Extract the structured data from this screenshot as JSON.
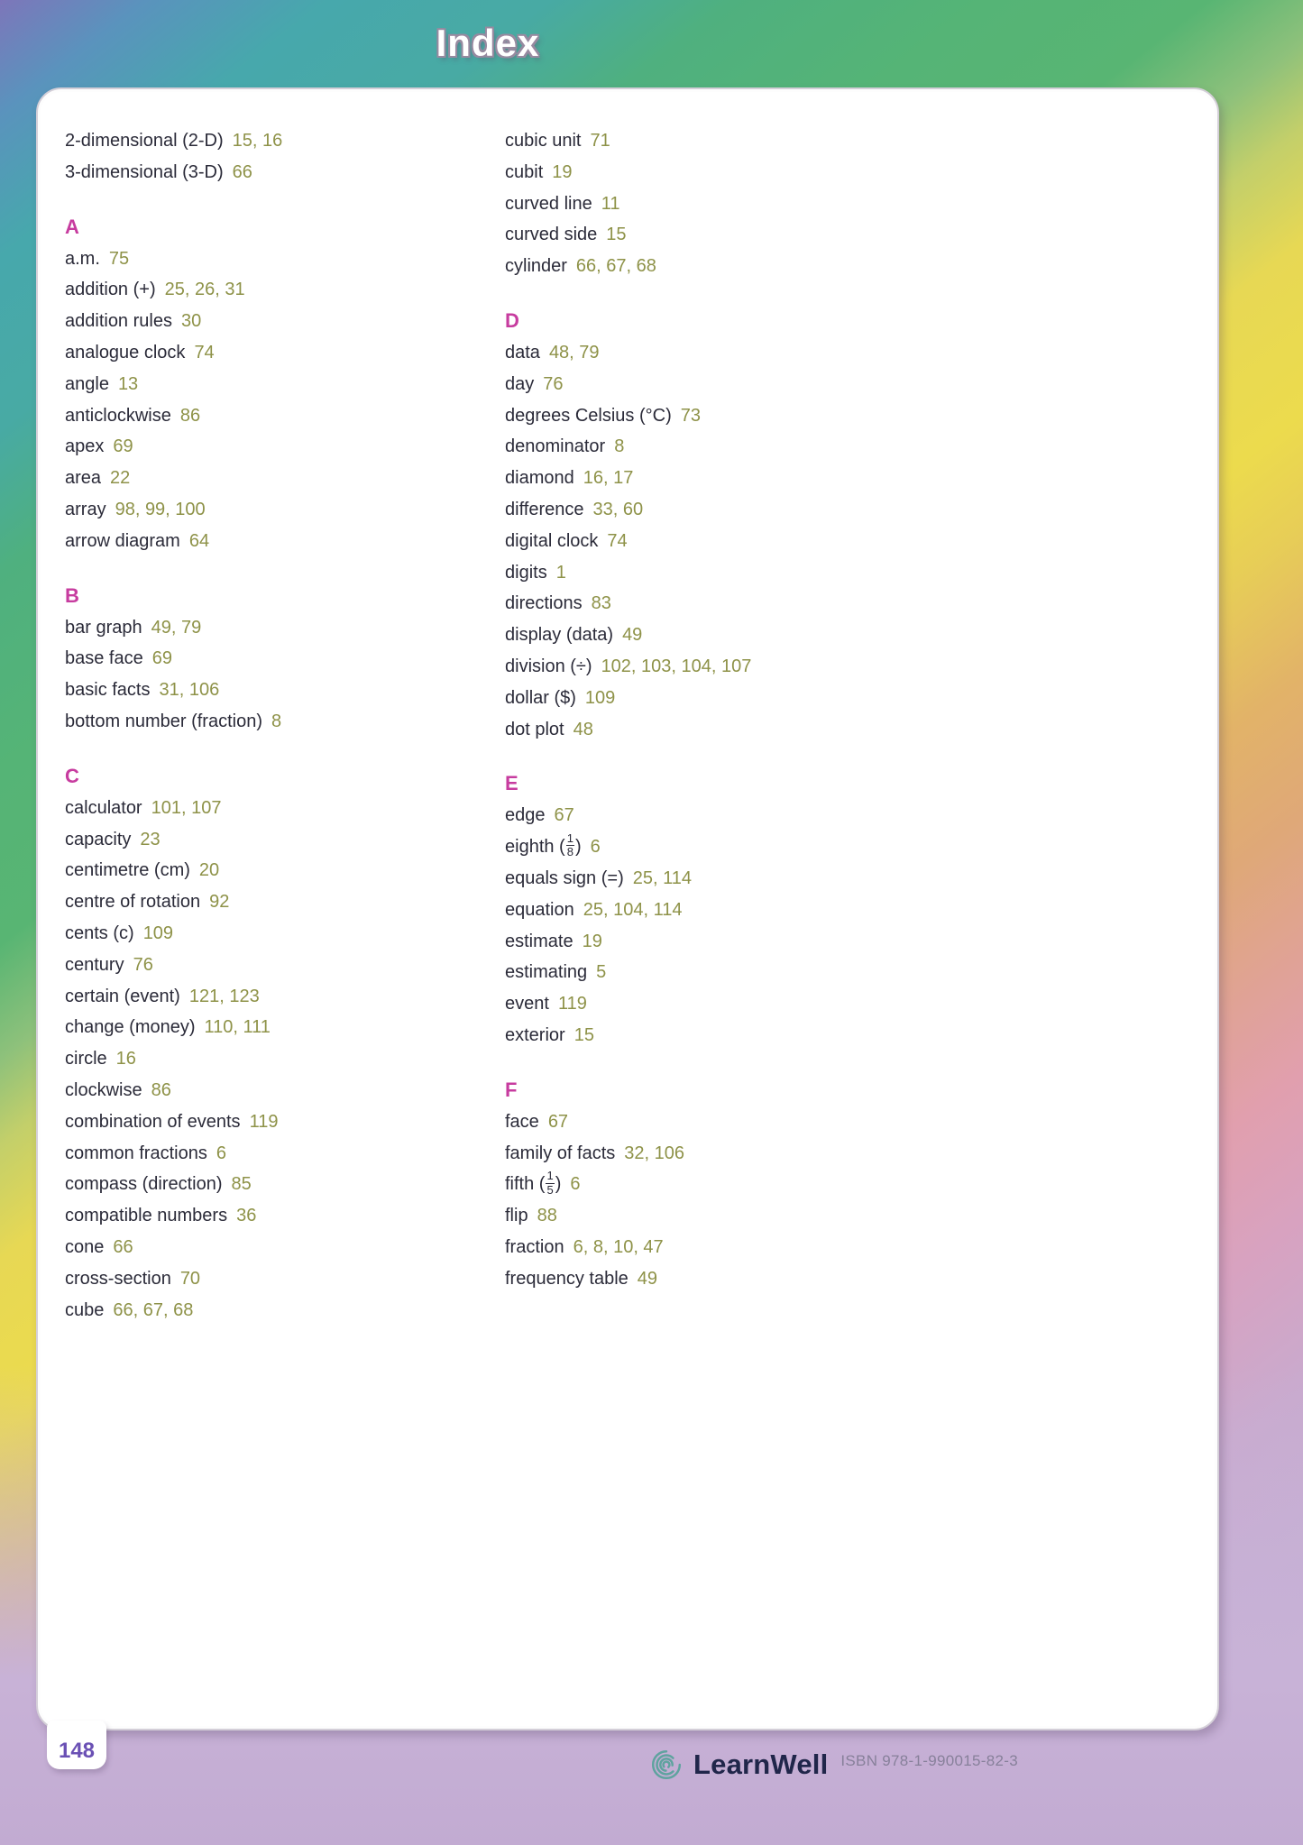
{
  "title": "Index",
  "page_badge": "148",
  "footer": {
    "brand": "LearnWell",
    "isbn": "ISBN 978-1-990015-82-3"
  },
  "colors": {
    "section_letter_pink": "#c73c9f",
    "page_number_olive": "#8e9248",
    "term_dark": "#2b2b39",
    "badge_purple": "#6a50b4",
    "logo_navy": "#20264a",
    "logo_teal": "#5fa39f"
  },
  "columns": [
    {
      "groups": [
        {
          "letter": "",
          "entries": [
            {
              "term": "2-dimensional (2-D)",
              "pages": "15, 16"
            },
            {
              "term": "3-dimensional (3-D)",
              "pages": "66"
            }
          ]
        },
        {
          "letter": "A",
          "entries": [
            {
              "term": "a.m.",
              "pages": "75"
            },
            {
              "term": "addition (+)",
              "pages": "25, 26, 31"
            },
            {
              "term": "addition rules",
              "pages": "30"
            },
            {
              "term": "analogue clock",
              "pages": "74"
            },
            {
              "term": "angle",
              "pages": "13"
            },
            {
              "term": "anticlockwise",
              "pages": "86"
            },
            {
              "term": "apex",
              "pages": "69"
            },
            {
              "term": "area",
              "pages": "22"
            },
            {
              "term": "array",
              "pages": "98, 99, 100"
            },
            {
              "term": "arrow diagram",
              "pages": "64"
            }
          ]
        },
        {
          "letter": "B",
          "entries": [
            {
              "term": "bar graph",
              "pages": "49, 79"
            },
            {
              "term": "base face",
              "pages": "69"
            },
            {
              "term": "basic facts",
              "pages": "31, 106"
            },
            {
              "term": "bottom number (fraction)",
              "pages": "8"
            }
          ]
        },
        {
          "letter": "C",
          "entries": [
            {
              "term": "calculator",
              "pages": "101, 107"
            },
            {
              "term": "capacity",
              "pages": "23"
            },
            {
              "term": "centimetre (cm)",
              "pages": "20"
            },
            {
              "term": "centre of rotation",
              "pages": "92"
            },
            {
              "term": "cents (c)",
              "pages": "109"
            },
            {
              "term": "century",
              "pages": "76"
            },
            {
              "term": "certain (event)",
              "pages": "121, 123"
            },
            {
              "term": "change (money)",
              "pages": "110, 111"
            },
            {
              "term": "circle",
              "pages": "16"
            },
            {
              "term": "clockwise",
              "pages": "86"
            },
            {
              "term": "combination of events",
              "pages": "119"
            },
            {
              "term": "common fractions",
              "pages": "6"
            },
            {
              "term": "compass (direction)",
              "pages": "85"
            },
            {
              "term": "compatible numbers",
              "pages": "36"
            },
            {
              "term": "cone",
              "pages": "66"
            },
            {
              "term": "cross-section",
              "pages": "70"
            },
            {
              "term": "cube",
              "pages": "66, 67, 68"
            }
          ]
        }
      ]
    },
    {
      "groups": [
        {
          "letter": "",
          "entries": [
            {
              "term": "cubic unit",
              "pages": "71"
            },
            {
              "term": "cubit",
              "pages": "19"
            },
            {
              "term": "curved line",
              "pages": "11"
            },
            {
              "term": "curved side",
              "pages": "15"
            },
            {
              "term": "cylinder",
              "pages": "66, 67, 68"
            }
          ]
        },
        {
          "letter": "D",
          "entries": [
            {
              "term": "data",
              "pages": "48, 79"
            },
            {
              "term": "day",
              "pages": "76"
            },
            {
              "term": "degrees Celsius (°C)",
              "pages": "73"
            },
            {
              "term": "denominator",
              "pages": "8"
            },
            {
              "term": "diamond",
              "pages": "16, 17"
            },
            {
              "term": "difference",
              "pages": "33, 60"
            },
            {
              "term": "digital clock",
              "pages": "74"
            },
            {
              "term": "digits",
              "pages": "1"
            },
            {
              "term": "directions",
              "pages": "83"
            },
            {
              "term": "display (data)",
              "pages": "49"
            },
            {
              "term": "division (÷)",
              "pages": "102, 103, 104, 107"
            },
            {
              "term": "dollar ($)",
              "pages": "109"
            },
            {
              "term": "dot plot",
              "pages": "48"
            }
          ]
        },
        {
          "letter": "E",
          "entries": [
            {
              "term": "edge",
              "pages": "67"
            },
            {
              "term_prefix": "eighth (",
              "frac_num": "1",
              "frac_den": "8",
              "term_suffix": ")",
              "pages": "6"
            },
            {
              "term": "equals sign (=)",
              "pages": "25, 114"
            },
            {
              "term": "equation",
              "pages": "25, 104, 114"
            },
            {
              "term": "estimate",
              "pages": "19"
            },
            {
              "term": "estimating",
              "pages": "5"
            },
            {
              "term": "event",
              "pages": "119"
            },
            {
              "term": "exterior",
              "pages": "15"
            }
          ]
        },
        {
          "letter": "F",
          "entries": [
            {
              "term": "face",
              "pages": "67"
            },
            {
              "term": "family of facts",
              "pages": "32, 106"
            },
            {
              "term_prefix": "fifth (",
              "frac_num": "1",
              "frac_den": "5",
              "term_suffix": ")",
              "pages": "6"
            },
            {
              "term": "flip",
              "pages": "88"
            },
            {
              "term": "fraction",
              "pages": "6, 8, 10, 47"
            },
            {
              "term": "frequency table",
              "pages": "49"
            }
          ]
        }
      ]
    }
  ]
}
